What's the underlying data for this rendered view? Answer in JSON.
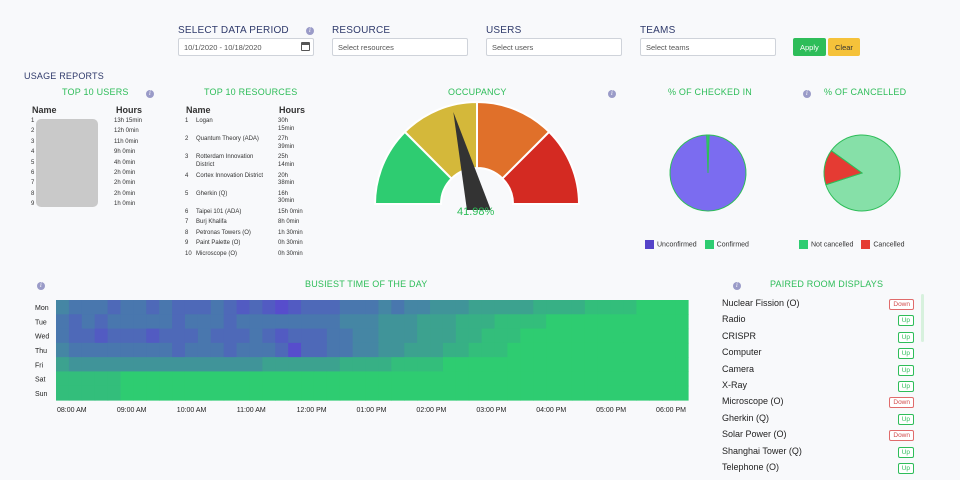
{
  "filters": {
    "period_label": "SELECT DATA PERIOD",
    "period_value": "10/1/2020 - 10/18/2020",
    "resource_label": "RESOURCE",
    "resource_placeholder": "Select resources",
    "users_label": "USERS",
    "users_placeholder": "Select users",
    "teams_label": "TEAMS",
    "teams_placeholder": "Select teams",
    "apply": "Apply",
    "clear": "Clear"
  },
  "section_title": "USAGE REPORTS",
  "top_users": {
    "title": "TOP 10 USERS",
    "col_name": "Name",
    "col_hours": "Hours",
    "rows": [
      {
        "rank": "1",
        "hours": "13h 15min"
      },
      {
        "rank": "2",
        "hours": "12h 0min"
      },
      {
        "rank": "3",
        "hours": "11h 0min"
      },
      {
        "rank": "4",
        "hours": "9h 0min"
      },
      {
        "rank": "5",
        "hours": "4h 0min"
      },
      {
        "rank": "6",
        "hours": "2h 0min"
      },
      {
        "rank": "7",
        "hours": "2h 0min"
      },
      {
        "rank": "8",
        "hours": "2h 0min"
      },
      {
        "rank": "9",
        "hours": "1h 0min"
      }
    ]
  },
  "top_resources": {
    "title": "TOP 10 RESOURCES",
    "col_name": "Name",
    "col_hours": "Hours",
    "rows": [
      {
        "rank": "1",
        "name": "Logan",
        "name2": "",
        "hours": "30h",
        "hours2": "15min"
      },
      {
        "rank": "2",
        "name": "Quantum Theory (ADA)",
        "name2": "",
        "hours": "27h",
        "hours2": "39min"
      },
      {
        "rank": "3",
        "name": "Rotterdam Innovation",
        "name2": "District",
        "hours": "25h",
        "hours2": "14min"
      },
      {
        "rank": "4",
        "name": "Cortex Innovation District",
        "name2": "",
        "hours": "20h",
        "hours2": "38min"
      },
      {
        "rank": "5",
        "name": "Gherkin (Q)",
        "name2": "",
        "hours": "16h",
        "hours2": "30min"
      },
      {
        "rank": "6",
        "name": "Taipei 101 (ADA)",
        "name2": "",
        "hours": "15h 0min",
        "hours2": ""
      },
      {
        "rank": "7",
        "name": "Burj Khalifa",
        "name2": "",
        "hours": "8h 0min",
        "hours2": ""
      },
      {
        "rank": "8",
        "name": "Petronas Towers (O)",
        "name2": "",
        "hours": "1h 30min",
        "hours2": ""
      },
      {
        "rank": "9",
        "name": "Paint Palette (O)",
        "name2": "",
        "hours": "0h 30min",
        "hours2": ""
      },
      {
        "rank": "10",
        "name": "Microscope (O)",
        "name2": "",
        "hours": "0h 30min",
        "hours2": ""
      }
    ]
  },
  "occupancy": {
    "title": "OCCUPANCY",
    "value": 41.98,
    "value_label": "41.98%",
    "colors": [
      "#2ecc71",
      "#d4b83a",
      "#e0702a",
      "#d42a22"
    ]
  },
  "checked_in": {
    "title": "% OF CHECKED IN",
    "unconfirmed": 99,
    "confirmed": 1,
    "labels": [
      "Unconfirmed",
      "Confirmed"
    ],
    "colors": [
      "#7b6cf0",
      "#2ecc71"
    ]
  },
  "cancelled": {
    "title": "% OF CANCELLED",
    "not_cancelled": 85,
    "cancelled": 15,
    "labels": [
      "Not cancelled",
      "Cancelled"
    ],
    "colors": [
      "#86e0a8",
      "#e53b33"
    ]
  },
  "chart_data": {
    "type": "heatmap",
    "title": "BUSIEST TIME OF THE DAY",
    "rows": [
      "Mon",
      "Tue",
      "Wed",
      "Thu",
      "Fri",
      "Sat",
      "Sun"
    ],
    "columns": [
      "08:00 AM",
      "09:00 AM",
      "10:00 AM",
      "11:00 AM",
      "12:00 PM",
      "01:00 PM",
      "02:00 PM",
      "03:00 PM",
      "04:00 PM",
      "05:00 PM",
      "06:00 PM"
    ],
    "values": [
      [
        0.5,
        0.6,
        0.6,
        0.6,
        0.7,
        0.6,
        0.6,
        0.7,
        0.6,
        0.7,
        0.7,
        0.7,
        0.6,
        0.7,
        0.8,
        0.7,
        0.8,
        0.9,
        0.8,
        0.7,
        0.7,
        0.7,
        0.6,
        0.6,
        0.6,
        0.5,
        0.6,
        0.5,
        0.5,
        0.4,
        0.4,
        0.4,
        0.3,
        0.3,
        0.3,
        0.3,
        0.3,
        0.2,
        0.2,
        0.2,
        0.2,
        0.1,
        0.1,
        0.1,
        0.1,
        0.0,
        0.0,
        0.0,
        0.0
      ],
      [
        0.6,
        0.7,
        0.6,
        0.7,
        0.6,
        0.6,
        0.6,
        0.6,
        0.6,
        0.7,
        0.6,
        0.6,
        0.6,
        0.7,
        0.6,
        0.6,
        0.6,
        0.6,
        0.6,
        0.6,
        0.6,
        0.6,
        0.5,
        0.5,
        0.5,
        0.4,
        0.4,
        0.4,
        0.3,
        0.3,
        0.3,
        0.2,
        0.2,
        0.2,
        0.1,
        0.1,
        0.1,
        0.1,
        0.0,
        0.0,
        0.0,
        0.0,
        0.0,
        0.0,
        0.0,
        0.0,
        0.0,
        0.0,
        0.0
      ],
      [
        0.6,
        0.7,
        0.7,
        0.8,
        0.7,
        0.7,
        0.7,
        0.8,
        0.7,
        0.7,
        0.7,
        0.6,
        0.7,
        0.7,
        0.7,
        0.6,
        0.7,
        0.8,
        0.7,
        0.7,
        0.7,
        0.6,
        0.6,
        0.5,
        0.5,
        0.4,
        0.4,
        0.4,
        0.3,
        0.3,
        0.3,
        0.2,
        0.2,
        0.1,
        0.1,
        0.1,
        0.0,
        0.0,
        0.0,
        0.0,
        0.0,
        0.0,
        0.0,
        0.0,
        0.0,
        0.0,
        0.0,
        0.0,
        0.0
      ],
      [
        0.5,
        0.6,
        0.6,
        0.6,
        0.6,
        0.6,
        0.6,
        0.6,
        0.6,
        0.7,
        0.6,
        0.6,
        0.6,
        0.7,
        0.6,
        0.6,
        0.6,
        0.7,
        0.9,
        0.7,
        0.7,
        0.6,
        0.6,
        0.5,
        0.5,
        0.4,
        0.4,
        0.3,
        0.3,
        0.3,
        0.2,
        0.2,
        0.1,
        0.1,
        0.1,
        0.0,
        0.0,
        0.0,
        0.0,
        0.0,
        0.0,
        0.0,
        0.0,
        0.0,
        0.0,
        0.0,
        0.0,
        0.0,
        0.0
      ],
      [
        0.3,
        0.4,
        0.4,
        0.4,
        0.4,
        0.4,
        0.4,
        0.4,
        0.4,
        0.4,
        0.4,
        0.4,
        0.4,
        0.4,
        0.4,
        0.4,
        0.3,
        0.3,
        0.3,
        0.3,
        0.3,
        0.3,
        0.2,
        0.2,
        0.2,
        0.2,
        0.1,
        0.1,
        0.1,
        0.1,
        0.0,
        0.0,
        0.0,
        0.0,
        0.0,
        0.0,
        0.0,
        0.0,
        0.0,
        0.0,
        0.0,
        0.0,
        0.0,
        0.0,
        0.0,
        0.0,
        0.0,
        0.0,
        0.0
      ],
      [
        0.1,
        0.1,
        0.1,
        0.1,
        0.1,
        0.0,
        0.0,
        0.0,
        0.0,
        0.0,
        0.0,
        0.0,
        0.0,
        0.0,
        0.0,
        0.0,
        0.0,
        0.0,
        0.0,
        0.0,
        0.0,
        0.0,
        0.0,
        0.0,
        0.0,
        0.0,
        0.0,
        0.0,
        0.0,
        0.0,
        0.0,
        0.0,
        0.0,
        0.0,
        0.0,
        0.0,
        0.0,
        0.0,
        0.0,
        0.0,
        0.0,
        0.0,
        0.0,
        0.0,
        0.0,
        0.0,
        0.0,
        0.0,
        0.0
      ],
      [
        0.1,
        0.1,
        0.1,
        0.1,
        0.1,
        0.0,
        0.0,
        0.0,
        0.0,
        0.0,
        0.0,
        0.0,
        0.0,
        0.0,
        0.0,
        0.0,
        0.0,
        0.0,
        0.0,
        0.0,
        0.0,
        0.0,
        0.0,
        0.0,
        0.0,
        0.0,
        0.0,
        0.0,
        0.0,
        0.0,
        0.0,
        0.0,
        0.0,
        0.0,
        0.0,
        0.0,
        0.0,
        0.0,
        0.0,
        0.0,
        0.0,
        0.0,
        0.0,
        0.0,
        0.0,
        0.0,
        0.0,
        0.0,
        0.0
      ]
    ],
    "color_low": "#2ecc71",
    "color_high": "#5b3fd6",
    "legend": "none"
  },
  "paired_rooms": {
    "title": "PAIRED ROOM DISPLAYS",
    "rooms": [
      {
        "name": "Nuclear Fission (O)",
        "status": "Down"
      },
      {
        "name": "Radio",
        "status": "Up"
      },
      {
        "name": "CRISPR",
        "status": "Up"
      },
      {
        "name": "Computer",
        "status": "Up"
      },
      {
        "name": "Camera",
        "status": "Up"
      },
      {
        "name": "X-Ray",
        "status": "Up"
      },
      {
        "name": "Microscope (O)",
        "status": "Down"
      },
      {
        "name": "Gherkin (Q)",
        "status": "Up"
      },
      {
        "name": "Solar Power (O)",
        "status": "Down"
      },
      {
        "name": "Shanghai Tower (Q)",
        "status": "Up"
      },
      {
        "name": "Telephone (O)",
        "status": "Up"
      }
    ]
  },
  "icons": {
    "info": "info-icon",
    "calendar": "calendar-icon"
  }
}
